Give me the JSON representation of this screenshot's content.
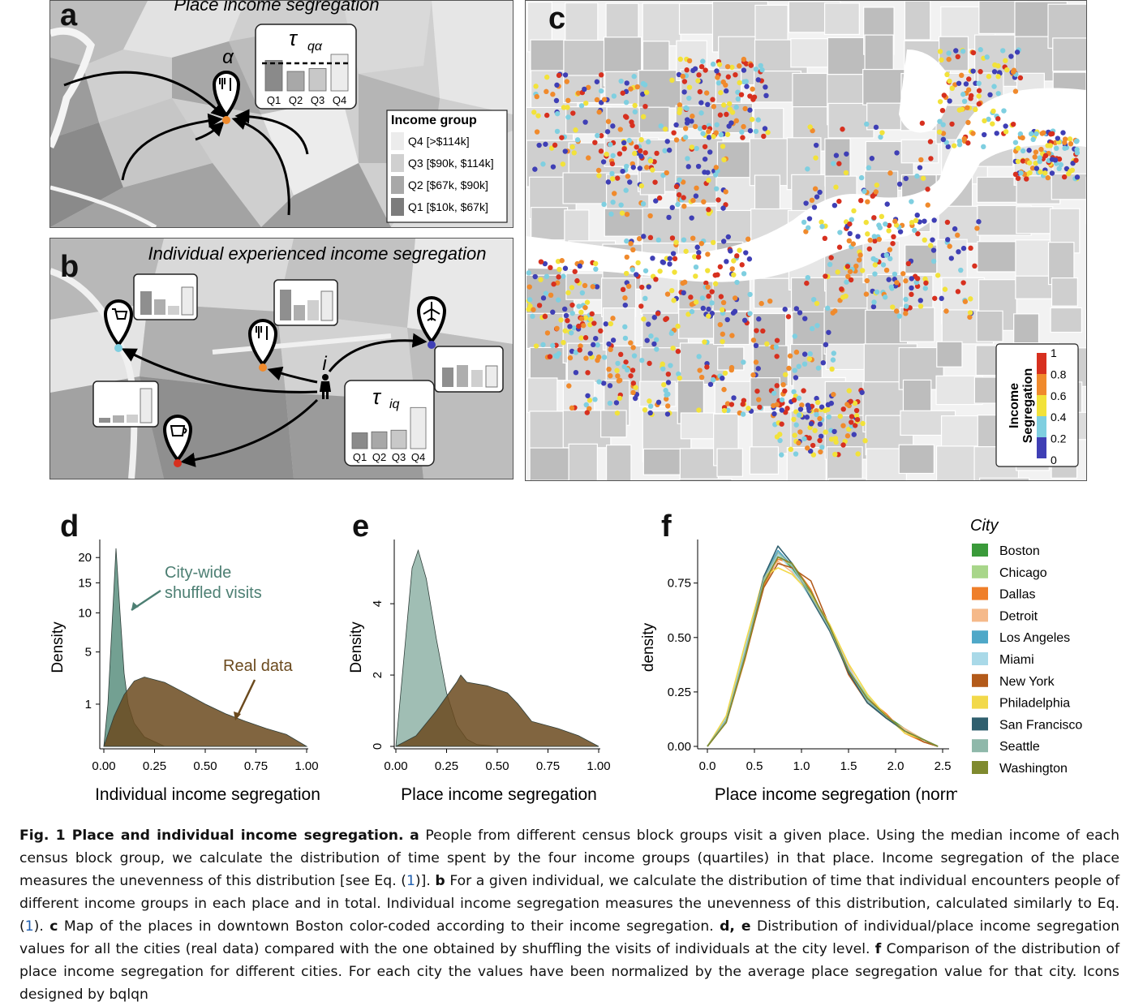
{
  "panel_labels": {
    "a": "a",
    "b": "b",
    "c": "c",
    "d": "d",
    "e": "e",
    "f": "f"
  },
  "panel_a": {
    "title": "Place income segregation",
    "place_symbol": "α",
    "tau_label": "τ",
    "tau_sub": "qα",
    "bars": [
      "Q1",
      "Q2",
      "Q3",
      "Q4"
    ],
    "bar_levels": [
      0.75,
      0.48,
      0.55,
      0.9
    ],
    "legend_title": "Income group",
    "legend_items": [
      "Q4 [>$114k]",
      "Q3 [$90k, $114k]",
      "Q2 [$67k, $90k]",
      "Q1 [$10k, $67k]"
    ],
    "legend_colors": [
      "#ececec",
      "#d0d0d0",
      "#a8a8a8",
      "#7c7c7c"
    ],
    "icons": [
      "restaurant-pin-icon"
    ]
  },
  "panel_b": {
    "title": "Individual experienced income segregation",
    "person_symbol": "i",
    "tau_label": "τ",
    "tau_sub": "iq",
    "bars": [
      "Q1",
      "Q2",
      "Q3",
      "Q4"
    ],
    "bar_levels": [
      0.3,
      0.32,
      0.35,
      0.78
    ],
    "icons": [
      "shopping-cart-pin-icon",
      "restaurant-pin-icon",
      "airport-pin-icon",
      "coffee-pin-icon",
      "person-icon"
    ]
  },
  "panel_c": {
    "colorbar_title_1": "Income",
    "colorbar_title_2": "Segregation",
    "colorbar_ticks": [
      "1",
      "0.8",
      "0.6",
      "0.4",
      "0.2",
      "0"
    ],
    "colors": [
      "#d7301f",
      "#f08a2c",
      "#f2e23a",
      "#7fcfe0",
      "#3f3fb5"
    ]
  },
  "panel_d": {
    "ylabel": "Density",
    "xlabel": "Individual income segregation",
    "yticks": [
      "1",
      "5",
      "10",
      "15",
      "20"
    ],
    "xticks": [
      "0.00",
      "0.25",
      "0.50",
      "0.75",
      "1.00"
    ],
    "annot_shuffled_1": "City-wide",
    "annot_shuffled_2": "shuffled visits",
    "annot_real": "Real data"
  },
  "panel_e": {
    "ylabel": "Density",
    "xlabel": "Place income segregation",
    "yticks": [
      "0",
      "2",
      "4"
    ],
    "xticks": [
      "0.00",
      "0.25",
      "0.50",
      "0.75",
      "1.00"
    ]
  },
  "panel_f": {
    "ylabel": "density",
    "xlabel": "Place income segregation (normalized)",
    "yticks": [
      "0.00",
      "0.25",
      "0.50",
      "0.75"
    ],
    "xticks": [
      "0.0",
      "0.5",
      "1.0",
      "1.5",
      "2.0",
      "2.5"
    ],
    "legend_title": "City"
  },
  "chart_data": [
    {
      "type": "area",
      "xlabel": "Individual income segregation",
      "ylabel": "Density",
      "xlim": [
        0,
        1
      ],
      "series": [
        {
          "name": "City-wide shuffled visits",
          "color": "#5b8f7f",
          "x": [
            0.0,
            0.02,
            0.04,
            0.06,
            0.08,
            0.1,
            0.12,
            0.15,
            0.2,
            0.3,
            1.0
          ],
          "y": [
            0.0,
            1.0,
            8.0,
            22.0,
            10.0,
            3.0,
            1.0,
            0.3,
            0.05,
            0.0,
            0.0
          ]
        },
        {
          "name": "Real data",
          "color": "#6b4a1e",
          "x": [
            0.0,
            0.05,
            0.1,
            0.15,
            0.2,
            0.3,
            0.4,
            0.5,
            0.6,
            0.7,
            0.8,
            0.9,
            1.0
          ],
          "y": [
            0.0,
            0.5,
            1.5,
            2.4,
            2.7,
            2.3,
            1.6,
            1.0,
            0.6,
            0.35,
            0.18,
            0.08,
            0.0
          ]
        }
      ]
    },
    {
      "type": "area",
      "xlabel": "Place income segregation",
      "ylabel": "Density",
      "xlim": [
        0,
        1
      ],
      "ylim": [
        0,
        5.8
      ],
      "series": [
        {
          "name": "City-wide shuffled visits",
          "color": "#8fb3a7",
          "x": [
            0.0,
            0.04,
            0.08,
            0.11,
            0.15,
            0.2,
            0.25,
            0.3,
            0.35,
            0.4,
            0.5,
            1.0
          ],
          "y": [
            0.0,
            2.5,
            5.0,
            5.5,
            4.7,
            3.0,
            1.5,
            0.6,
            0.2,
            0.05,
            0.0,
            0.0
          ]
        },
        {
          "name": "Real data",
          "color": "#6b4a1e",
          "x": [
            0.0,
            0.1,
            0.2,
            0.3,
            0.32,
            0.35,
            0.45,
            0.55,
            0.6,
            0.67,
            0.8,
            0.9,
            1.0
          ],
          "y": [
            0.0,
            0.3,
            1.0,
            1.8,
            2.0,
            1.8,
            1.7,
            1.5,
            1.2,
            0.7,
            0.5,
            0.3,
            0.0
          ]
        }
      ]
    },
    {
      "type": "line",
      "xlabel": "Place income segregation (normalized)",
      "ylabel": "density",
      "xlim": [
        0,
        2.5
      ],
      "ylim": [
        0,
        0.95
      ],
      "x": [
        0.0,
        0.2,
        0.4,
        0.6,
        0.75,
        0.9,
        1.1,
        1.3,
        1.5,
        1.7,
        1.9,
        2.1,
        2.3,
        2.45
      ],
      "series": [
        {
          "name": "Boston",
          "color": "#3a9a3a",
          "values": [
            0.0,
            0.12,
            0.42,
            0.75,
            0.88,
            0.82,
            0.7,
            0.55,
            0.35,
            0.22,
            0.14,
            0.08,
            0.03,
            0.0
          ]
        },
        {
          "name": "Chicago",
          "color": "#a8d68a",
          "values": [
            0.0,
            0.13,
            0.44,
            0.76,
            0.87,
            0.83,
            0.69,
            0.54,
            0.36,
            0.23,
            0.13,
            0.07,
            0.03,
            0.0
          ]
        },
        {
          "name": "Dallas",
          "color": "#ef7f2a",
          "values": [
            0.0,
            0.11,
            0.4,
            0.74,
            0.86,
            0.84,
            0.72,
            0.53,
            0.34,
            0.22,
            0.15,
            0.06,
            0.02,
            0.0
          ]
        },
        {
          "name": "Detroit",
          "color": "#f5b98a",
          "values": [
            0.0,
            0.12,
            0.43,
            0.77,
            0.85,
            0.8,
            0.7,
            0.56,
            0.37,
            0.21,
            0.13,
            0.08,
            0.03,
            0.0
          ]
        },
        {
          "name": "Los Angeles",
          "color": "#4fa8c8",
          "values": [
            0.0,
            0.12,
            0.43,
            0.78,
            0.9,
            0.83,
            0.69,
            0.54,
            0.35,
            0.21,
            0.13,
            0.07,
            0.03,
            0.0
          ]
        },
        {
          "name": "Miami",
          "color": "#a9d9e8",
          "values": [
            0.0,
            0.13,
            0.45,
            0.77,
            0.88,
            0.81,
            0.68,
            0.55,
            0.36,
            0.22,
            0.14,
            0.07,
            0.03,
            0.0
          ]
        },
        {
          "name": "New York",
          "color": "#b35a1a",
          "values": [
            0.0,
            0.11,
            0.41,
            0.73,
            0.84,
            0.82,
            0.76,
            0.55,
            0.33,
            0.2,
            0.13,
            0.07,
            0.02,
            0.0
          ]
        },
        {
          "name": "Philadelphia",
          "color": "#f2d94a",
          "values": [
            0.0,
            0.14,
            0.47,
            0.78,
            0.82,
            0.79,
            0.7,
            0.56,
            0.38,
            0.24,
            0.14,
            0.06,
            0.03,
            0.0
          ]
        },
        {
          "name": "San Francisco",
          "color": "#2f5f6e",
          "values": [
            0.0,
            0.12,
            0.42,
            0.78,
            0.92,
            0.84,
            0.68,
            0.53,
            0.34,
            0.2,
            0.13,
            0.07,
            0.03,
            0.0
          ]
        },
        {
          "name": "Seattle",
          "color": "#8fb8aa",
          "values": [
            0.0,
            0.12,
            0.43,
            0.77,
            0.89,
            0.83,
            0.69,
            0.54,
            0.35,
            0.21,
            0.14,
            0.07,
            0.03,
            0.0
          ]
        },
        {
          "name": "Washington",
          "color": "#7f8a2e",
          "values": [
            0.0,
            0.11,
            0.41,
            0.75,
            0.87,
            0.84,
            0.71,
            0.55,
            0.35,
            0.22,
            0.14,
            0.07,
            0.03,
            0.0
          ]
        }
      ]
    }
  ],
  "caption": {
    "fig_label": "Fig. 1 Place and individual income segregation.",
    "a_letter": "a",
    "text_a_1": " People from different census block groups visit a given place. Using the median income of each census block group, we calculate the distribution of time spent by the four income groups (quartiles) in that place. Income segregation of the place measures the unevenness of this distribution [see Eq. (",
    "ref_1": "1",
    "text_a_2": ")]. ",
    "b_letter": "b",
    "text_b_1": " For a given individual, we calculate the distribution of time that individual encounters people of different income groups in each place and in total. Individual income segregation measures the unevenness of this distribution, calculated similarly to Eq. (",
    "ref_2": "1",
    "text_b_2": "). ",
    "c_letter": "c",
    "text_c": " Map of the places in downtown Boston color-coded according to their income segregation. ",
    "de_letters": "d, e",
    "text_de": " Distribution of individual/place income segregation values for all the cities (real data) compared with the one obtained by shuffling the visits of individuals at the city level. ",
    "f_letter": "f",
    "text_f": " Comparison of the distribution of place income segregation for different cities. For each city the values have been normalized by the average place segregation value for that city. Icons designed by bqlqn"
  }
}
